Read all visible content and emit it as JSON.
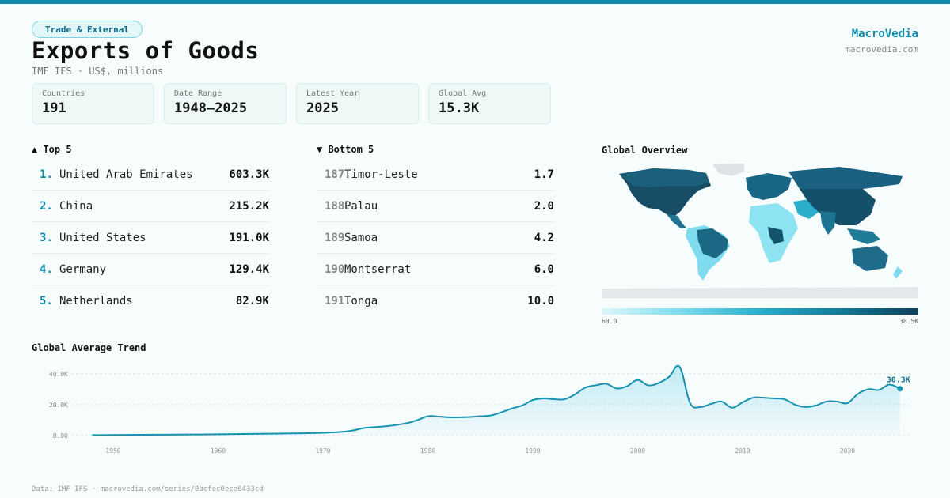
{
  "tag": "Trade & External",
  "title": "Exports of Goods",
  "subtitle": "IMF IFS · US$, millions",
  "brand": {
    "name": "MacroVedia",
    "url": "macrovedia.com"
  },
  "stats": [
    {
      "label": "Countries",
      "value": "191"
    },
    {
      "label": "Date Range",
      "value": "1948–2025"
    },
    {
      "label": "Latest Year",
      "value": "2025"
    },
    {
      "label": "Global Avg",
      "value": "15.3K"
    }
  ],
  "top5": {
    "heading": "▲ Top 5",
    "items": [
      {
        "rank": "1.",
        "name": "United Arab Emirates",
        "value": "603.3K"
      },
      {
        "rank": "2.",
        "name": "China",
        "value": "215.2K"
      },
      {
        "rank": "3.",
        "name": "United States",
        "value": "191.0K"
      },
      {
        "rank": "4.",
        "name": "Germany",
        "value": "129.4K"
      },
      {
        "rank": "5.",
        "name": "Netherlands",
        "value": "82.9K"
      }
    ]
  },
  "bottom5": {
    "heading": "▼ Bottom 5",
    "items": [
      {
        "rank": "187.",
        "name": "Timor-Leste",
        "value": "1.7"
      },
      {
        "rank": "188.",
        "name": "Palau",
        "value": "2.0"
      },
      {
        "rank": "189.",
        "name": "Samoa",
        "value": "4.2"
      },
      {
        "rank": "190.",
        "name": "Montserrat",
        "value": "6.0"
      },
      {
        "rank": "191.",
        "name": "Tonga",
        "value": "10.0"
      }
    ]
  },
  "map": {
    "heading": "Global Overview",
    "legend_min": "60.0",
    "legend_max": "38.5K"
  },
  "trend_heading": "Global Average Trend",
  "chart_data": {
    "type": "area",
    "title": "",
    "xlabel": "",
    "ylabel": "",
    "xlim": [
      1946,
      2026
    ],
    "ylim": [
      0,
      45000
    ],
    "y_ticks": [
      0,
      20000,
      40000
    ],
    "y_tick_labels": [
      "0.00",
      "20.0K",
      "40.0K"
    ],
    "x_ticks": [
      1950,
      1960,
      1970,
      1980,
      1990,
      2000,
      2010,
      2020
    ],
    "grid": true,
    "color": "#1791b0",
    "end_label": "30.3K",
    "x": [
      1948,
      1950,
      1955,
      1960,
      1965,
      1968,
      1970,
      1972,
      1973,
      1974,
      1976,
      1978,
      1979,
      1980,
      1981,
      1982,
      1983,
      1984,
      1985,
      1986,
      1987,
      1988,
      1989,
      1990,
      1991,
      1992,
      1993,
      1994,
      1995,
      1996,
      1997,
      1998,
      1999,
      2000,
      2001,
      2002,
      2003,
      2004,
      2005,
      2006,
      2007,
      2008,
      2009,
      2010,
      2011,
      2012,
      2013,
      2014,
      2015,
      2016,
      2017,
      2018,
      2019,
      2020,
      2021,
      2022,
      2023,
      2024,
      2025
    ],
    "y": [
      300,
      400,
      600,
      800,
      1200,
      1500,
      1800,
      2500,
      3500,
      5000,
      6000,
      8000,
      10000,
      12500,
      12300,
      11800,
      11800,
      12000,
      12500,
      13000,
      15000,
      17500,
      19500,
      23000,
      24000,
      23500,
      23500,
      26500,
      31000,
      32500,
      33500,
      30500,
      32000,
      36000,
      32500,
      34000,
      38000,
      44500,
      21000,
      18500,
      20500,
      22000,
      18000,
      21500,
      24500,
      24500,
      24000,
      23500,
      20000,
      18500,
      19500,
      22000,
      22000,
      21000,
      27000,
      30000,
      29500,
      33000,
      30300
    ]
  },
  "footer": "Data: IMF IFS · macrovedia.com/series/0bcfec0ece6433cd"
}
